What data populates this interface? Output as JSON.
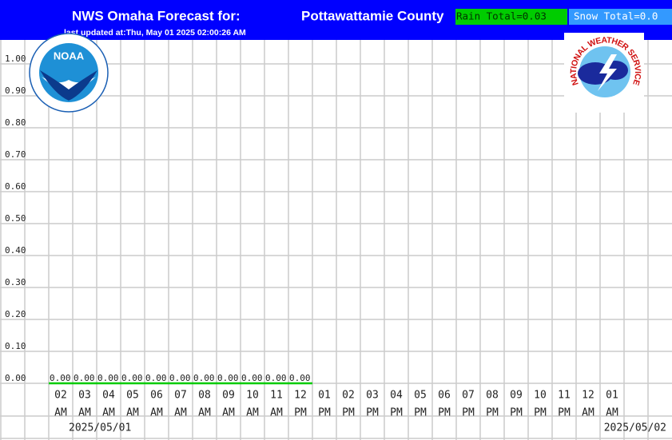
{
  "chart_data": {
    "type": "line",
    "title": "NWS Omaha Forecast for:",
    "location": "Pottawattamie County",
    "subtitle": "last updated at:Thu, May 01 2025 02:00:26 AM",
    "rain_total": "Rain Total=0.03",
    "snow_total": "Snow Total=0.0",
    "logos": {
      "noaa": "NOAA",
      "nws": "NATIONAL WEATHER SERVICE"
    },
    "categories": [
      {
        "hour": "02",
        "period": "AM"
      },
      {
        "hour": "03",
        "period": "AM"
      },
      {
        "hour": "04",
        "period": "AM"
      },
      {
        "hour": "05",
        "period": "AM"
      },
      {
        "hour": "06",
        "period": "AM"
      },
      {
        "hour": "07",
        "period": "AM"
      },
      {
        "hour": "08",
        "period": "AM"
      },
      {
        "hour": "09",
        "period": "AM"
      },
      {
        "hour": "10",
        "period": "AM"
      },
      {
        "hour": "11",
        "period": "AM"
      },
      {
        "hour": "12",
        "period": "PM"
      },
      {
        "hour": "01",
        "period": "PM"
      },
      {
        "hour": "02",
        "period": "PM"
      },
      {
        "hour": "03",
        "period": "PM"
      },
      {
        "hour": "04",
        "period": "PM"
      },
      {
        "hour": "05",
        "period": "PM"
      },
      {
        "hour": "06",
        "period": "PM"
      },
      {
        "hour": "07",
        "period": "PM"
      },
      {
        "hour": "08",
        "period": "PM"
      },
      {
        "hour": "09",
        "period": "PM"
      },
      {
        "hour": "10",
        "period": "PM"
      },
      {
        "hour": "11",
        "period": "PM"
      },
      {
        "hour": "12",
        "period": "AM"
      },
      {
        "hour": "01",
        "period": "AM"
      }
    ],
    "dates": [
      "2025/05/01",
      "2025/05/02"
    ],
    "series": [
      {
        "name": "Rain",
        "color": "#00cc00",
        "values": [
          0,
          0,
          0,
          0,
          0,
          0,
          0,
          0,
          0,
          0,
          0,
          null,
          null,
          null,
          null,
          null,
          null,
          null,
          null,
          null,
          null,
          null,
          null,
          null
        ],
        "value_labels": [
          "0.00",
          "0.00",
          "0.00",
          "0.00",
          "0.00",
          "0.00",
          "0.00",
          "0.00",
          "0.00",
          "0.00",
          "0.00",
          null,
          null,
          null,
          null,
          null,
          null,
          null,
          null,
          null,
          null,
          null,
          null,
          null
        ]
      }
    ],
    "ylim": [
      0,
      1.0
    ],
    "yticks": [
      {
        "value": 0,
        "label": "0.00"
      },
      {
        "value": 0.1,
        "label": "0.10"
      },
      {
        "value": 0.2,
        "label": "0.20"
      },
      {
        "value": 0.3,
        "label": "0.30"
      },
      {
        "value": 0.4,
        "label": "0.40"
      },
      {
        "value": 0.5,
        "label": "0.50"
      },
      {
        "value": 0.6,
        "label": "0.60"
      },
      {
        "value": 0.7,
        "label": "0.70"
      },
      {
        "value": 0.8,
        "label": "0.80"
      },
      {
        "value": 0.9,
        "label": "0.90"
      },
      {
        "value": 1.0,
        "label": "1.00"
      }
    ],
    "grid": true
  }
}
